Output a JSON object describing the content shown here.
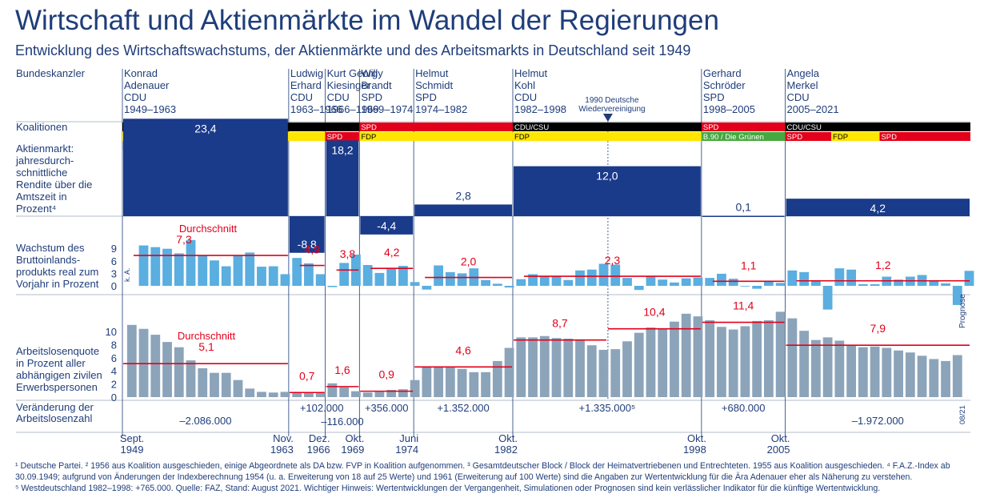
{
  "title": "Wirtschaft und Aktienmärkte im Wandel der Regierungen",
  "subtitle": "Entwicklung des Wirtschaftswachstums, der Aktienmärkte und des Arbeitsmarkts in Deutschland seit 1949",
  "colors": {
    "navy": "#1f3d7a",
    "block": "#1a3a8a",
    "bar_gdp": "#5aaee0",
    "bar_unemp": "#8ca4ba",
    "avg": "#e2001a",
    "cdu": "#000000",
    "fdp": "#ffe500",
    "spd": "#e2001a",
    "dp": "#8ca4ba",
    "gruene": "#46a83f"
  },
  "labels": {
    "chancellor": "Bundeskanzler",
    "coalitions": "Koalitionen",
    "stock": [
      "Aktienmarkt:",
      "jahresdurch-",
      "schnittliche",
      "Rendite über die",
      "Amtszeit in",
      "Prozent⁴"
    ],
    "gdp": [
      "Wachstum des",
      "Bruttoinlands-",
      "produkts real zum",
      "Vorjahr in Prozent"
    ],
    "unemp": [
      "Arbeitslosenquote",
      "in Prozent aller",
      "abhängigen zivilen",
      "Erwerbspersonen"
    ],
    "change": [
      "Veränderung der",
      "Arbeitslosenzahl"
    ],
    "avg": "Durchschnitt",
    "ka": "k. A.",
    "prognose": "Prognose",
    "date_code": "08/21",
    "reunification": [
      "1990 Deutsche",
      "Wiedervereinigung"
    ]
  },
  "chart_data": {
    "type": "bar",
    "title": "Wirtschaft und Aktienmärkte im Wandel der Regierungen",
    "chancellors": [
      {
        "lines": [
          "Konrad",
          "Adenauer",
          "CDU",
          "1949–1963"
        ]
      },
      {
        "lines": [
          "Ludwig",
          "Erhard",
          "CDU",
          "1963–1966"
        ]
      },
      {
        "lines": [
          "Kurt Georg",
          "Kiesinger",
          "CDU",
          "1966–1969"
        ]
      },
      {
        "lines": [
          "Willy",
          "Brandt",
          "SPD",
          "1969–1974"
        ]
      },
      {
        "lines": [
          "Helmut",
          "Schmidt",
          "SPD",
          "1974–1982"
        ]
      },
      {
        "lines": [
          "Helmut",
          "Kohl",
          "CDU",
          "1982–1998"
        ]
      },
      {
        "lines": [
          "Gerhard",
          "Schröder",
          "SPD",
          "1998–2005"
        ]
      },
      {
        "lines": [
          "Angela",
          "Merkel",
          "CDU",
          "2005–2021"
        ]
      }
    ],
    "boundaries": [
      1949.7,
      1963.8,
      1966.9,
      1969.8,
      1974.4,
      1982.8,
      1998.8,
      2005.9,
      2021.6
    ],
    "coalition_rows": [
      [
        {
          "label": "CDU/CSU",
          "party": "cdu",
          "from": 1949.7,
          "to": 1969.8
        },
        {
          "label": "SPD",
          "party": "spd",
          "from": 1969.8,
          "to": 1982.8
        },
        {
          "label": "CDU/CSU",
          "party": "cdu",
          "from": 1982.8,
          "to": 1998.8
        },
        {
          "label": "SPD",
          "party": "spd",
          "from": 1998.8,
          "to": 2005.9
        },
        {
          "label": "CDU/CSU",
          "party": "cdu",
          "from": 2005.9,
          "to": 2021.6
        }
      ],
      [
        {
          "label": "FDP",
          "party": "fdp",
          "from": 1949.7,
          "to": 1953.5
        },
        {
          "label": "FDP²",
          "party": "fdp",
          "from": 1953.5,
          "to": 1956.2
        },
        {
          "label": "DP",
          "party": "dp",
          "from": 1957.8,
          "to": 1961.5
        },
        {
          "label": "FDP",
          "party": "fdp",
          "from": 1961.5,
          "to": 1966.9
        },
        {
          "label": "SPD",
          "party": "spd",
          "from": 1966.9,
          "to": 1969.8
        },
        {
          "label": "FDP",
          "party": "fdp",
          "from": 1969.8,
          "to": 1982.8
        },
        {
          "label": "FDP",
          "party": "fdp",
          "from": 1982.8,
          "to": 1998.8
        },
        {
          "label": "B.90 / Die Grünen",
          "party": "gruene",
          "from": 1998.8,
          "to": 2005.9
        },
        {
          "label": "SPD",
          "party": "spd",
          "from": 2005.9,
          "to": 2009.8
        },
        {
          "label": "FDP",
          "party": "fdp",
          "from": 2009.8,
          "to": 2013.9
        },
        {
          "label": "SPD",
          "party": "spd",
          "from": 2013.9,
          "to": 2021.6
        }
      ],
      [
        {
          "label": "DP¹",
          "party": "dp",
          "from": 1949.7,
          "to": 1953.0
        },
        {
          "label": "DP, GB/BHE³",
          "party": "dp",
          "from": 1953.0,
          "to": 1959.0
        }
      ]
    ],
    "stock_returns": [
      "23,4",
      "-8,8",
      "18,2",
      "-4,4",
      "2,8",
      "12,0",
      "0,1",
      "4,2"
    ],
    "gdp_years": [
      1951,
      1952,
      1953,
      1954,
      1955,
      1956,
      1957,
      1958,
      1959,
      1960,
      1961,
      1962,
      1963,
      1964,
      1965,
      1966,
      1967,
      1968,
      1969,
      1970,
      1971,
      1972,
      1973,
      1974,
      1975,
      1976,
      1977,
      1978,
      1979,
      1980,
      1981,
      1982,
      1983,
      1984,
      1985,
      1986,
      1987,
      1988,
      1989,
      1990,
      1991,
      1992,
      1993,
      1994,
      1995,
      1996,
      1997,
      1998,
      1999,
      2000,
      2001,
      2002,
      2003,
      2004,
      2005,
      2006,
      2007,
      2008,
      2009,
      2010,
      2011,
      2012,
      2013,
      2014,
      2015,
      2016,
      2017,
      2018,
      2019,
      2020,
      2021
    ],
    "gdp_values": [
      9.7,
      9.3,
      8.9,
      7.8,
      11.0,
      7.4,
      6.1,
      4.7,
      7.4,
      8.0,
      4.6,
      4.7,
      2.8,
      6.7,
      5.4,
      2.8,
      -0.3,
      5.5,
      7.5,
      5.0,
      3.1,
      4.3,
      4.8,
      0.9,
      -0.9,
      4.9,
      3.3,
      3.0,
      4.2,
      1.4,
      0.5,
      -0.4,
      1.6,
      2.8,
      2.3,
      2.3,
      1.4,
      3.7,
      3.9,
      5.3,
      5.1,
      1.9,
      -1.0,
      2.4,
      1.5,
      0.8,
      1.8,
      2.0,
      1.9,
      2.9,
      1.7,
      0.0,
      -0.7,
      1.2,
      0.7,
      3.7,
      3.3,
      1.1,
      -5.7,
      4.2,
      3.9,
      0.4,
      0.4,
      2.2,
      1.5,
      2.2,
      2.6,
      1.3,
      0.6,
      -4.6,
      3.6
    ],
    "gdp_averages": [
      "7,3",
      "4,9",
      "3,8",
      "4,2",
      "2,0",
      "2,3",
      "1,1",
      "1,2"
    ],
    "unemp_years": [
      1950,
      1951,
      1952,
      1953,
      1954,
      1955,
      1956,
      1957,
      1958,
      1959,
      1960,
      1961,
      1962,
      1963,
      1964,
      1965,
      1966,
      1967,
      1968,
      1969,
      1970,
      1971,
      1972,
      1973,
      1974,
      1975,
      1976,
      1977,
      1978,
      1979,
      1980,
      1981,
      1982,
      1983,
      1984,
      1985,
      1986,
      1987,
      1988,
      1989,
      1990,
      1991,
      1992,
      1993,
      1994,
      1995,
      1996,
      1997,
      1998,
      1999,
      2000,
      2001,
      2002,
      2003,
      2004,
      2005,
      2006,
      2007,
      2008,
      2009,
      2010,
      2011,
      2012,
      2013,
      2014,
      2015,
      2016,
      2017,
      2018,
      2019,
      2020
    ],
    "unemp_values": [
      11.0,
      10.4,
      9.5,
      8.4,
      7.6,
      5.6,
      4.4,
      3.7,
      3.7,
      2.6,
      1.3,
      0.8,
      0.7,
      0.8,
      0.8,
      0.7,
      0.7,
      2.1,
      1.5,
      0.9,
      0.7,
      0.8,
      1.1,
      1.2,
      2.6,
      4.7,
      4.6,
      4.5,
      4.3,
      3.8,
      3.8,
      5.5,
      7.5,
      9.1,
      9.1,
      9.3,
      9.0,
      8.9,
      8.7,
      7.9,
      7.2,
      7.3,
      8.5,
      9.8,
      10.6,
      10.4,
      11.5,
      12.7,
      12.3,
      11.7,
      10.7,
      10.3,
      10.8,
      11.6,
      11.7,
      13.0,
      12.0,
      10.1,
      8.7,
      9.1,
      8.6,
      7.9,
      7.6,
      7.7,
      7.5,
      7.1,
      6.8,
      6.3,
      5.8,
      5.5,
      6.4
    ],
    "unemp_averages": [
      "5,1",
      "0,7",
      "1,6",
      "0,9",
      "4,6",
      "8,7",
      "10,4",
      "11,4",
      "7,9"
    ],
    "unemp_change": [
      "–2.086.000",
      "+102.000",
      "–116.000",
      "+356.000",
      "+1.352.000",
      "+1.335.000⁵",
      "+680.000",
      "–1.972.000"
    ],
    "dates": [
      [
        "Sept.",
        "1949"
      ],
      [
        "Nov.",
        "1963"
      ],
      [
        "Dez.",
        "1966"
      ],
      [
        "Okt.",
        "1969"
      ],
      [
        "Juni",
        "1974"
      ],
      [
        "Okt.",
        "1982"
      ],
      [
        "Okt.",
        "1998"
      ],
      [
        "Okt.",
        "2005"
      ]
    ],
    "gdp_yticks": [
      "9",
      "6",
      "3",
      "0"
    ],
    "unemp_yticks": [
      "10",
      "8",
      "6",
      "4",
      "2",
      "0"
    ],
    "ylim_gdp": [
      -6,
      11
    ],
    "ylim_unemp": [
      0,
      13
    ]
  },
  "footnotes": [
    "¹ Deutsche Partei. ² 1956 aus Koalition ausgeschieden, einige Abgeordnete als DA bzw. FVP in Koalition aufgenommen. ³ Gesamtdeutscher Block / Block der Heimatvertriebenen und Entrechteten. 1955 aus Koalition ausgeschieden. ⁴ F.A.Z.-Index ab 30.09.1949; aufgrund von Änderungen der Indexberechnung 1954 (u. a. Erweiterung von 18 auf 25 Werte) und 1961 (Erweiterung auf 100 Werte) sind die Angaben zur Wertentwicklung für die Ära Adenauer eher als Näherung zu verstehen.",
    "⁵ Westdeutschland 1982–1998: +765.000. Quelle: FAZ, Stand: August 2021. Wichtiger Hinweis: Wertentwicklungen der Vergangenheit, Simulationen oder Prognosen sind kein verlässlicher Indikator für die künftige Wertentwicklung."
  ]
}
